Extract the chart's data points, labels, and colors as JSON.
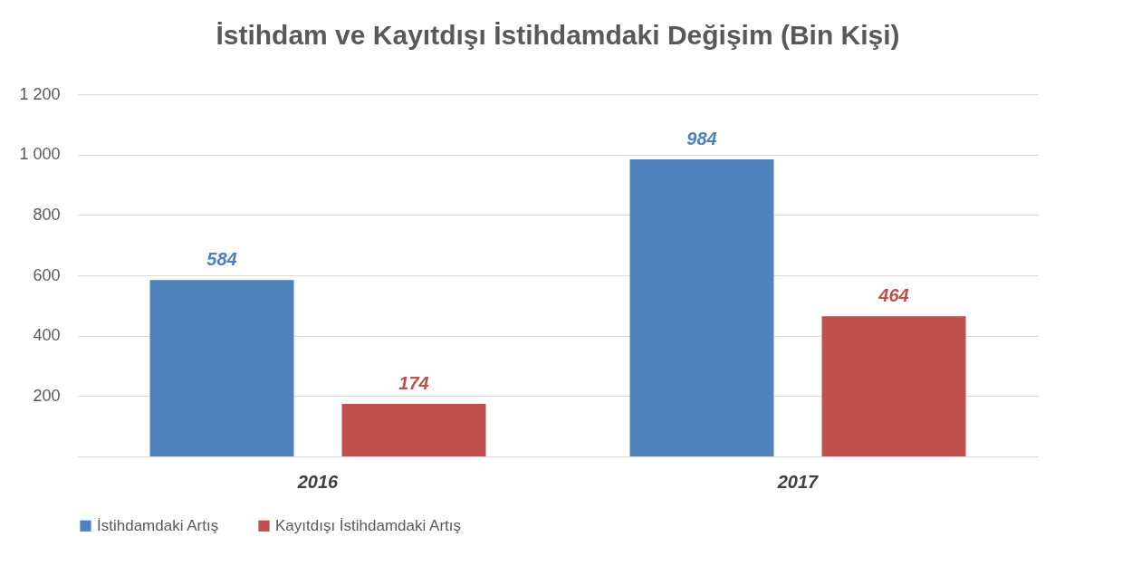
{
  "chart_data": {
    "type": "bar",
    "title": "İstihdam ve Kayıtdışı İstihdamdaki Değişim (Bin Kişi)",
    "categories": [
      "2016",
      "2017"
    ],
    "series": [
      {
        "name": "İstihdamdaki Artış",
        "color": "#4f81bd",
        "values": [
          584,
          984
        ]
      },
      {
        "name": "Kayıtdışı İstihdamdaki Artış",
        "color": "#c0504d",
        "values": [
          174,
          464
        ]
      }
    ],
    "ylim": [
      0,
      1200
    ],
    "yticks": [
      {
        "value": 0,
        "label": null
      },
      200,
      400,
      600,
      800,
      {
        "value": 1000,
        "label": "1 000"
      },
      {
        "value": 1200,
        "label": "1 200"
      }
    ],
    "grid": "y",
    "legend": "bottom",
    "data_labels": true
  }
}
